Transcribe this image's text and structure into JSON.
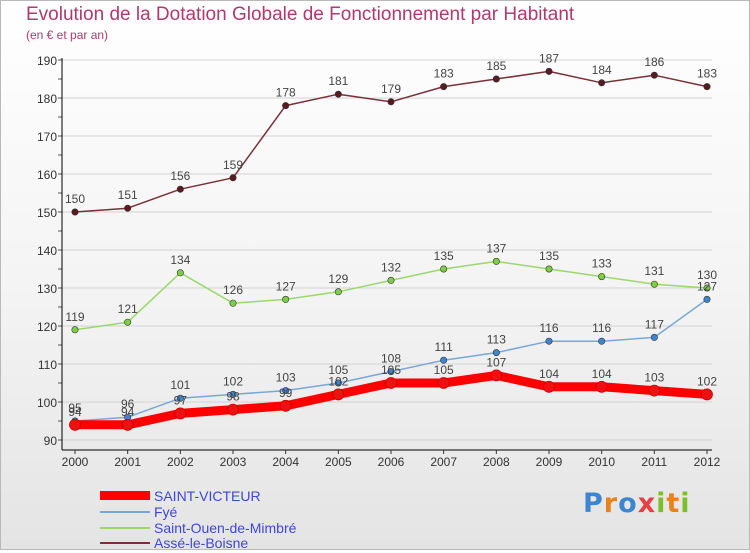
{
  "header": {
    "title": "Evolution de la Dotation Globale de Fonctionnement par Habitant",
    "subtitle": "(en € et par an)"
  },
  "logo": {
    "text": "Proxiti"
  },
  "colors": {
    "title": "#b0396f",
    "grid": "#d2d2d2",
    "axis": "#000000",
    "legend_text": "#3f47d6"
  },
  "chart_data": {
    "type": "line",
    "title": "Evolution de la Dotation Globale de Fonctionnement par Habitant",
    "subtitle": "(en € et par an)",
    "xlabel": "",
    "ylabel": "",
    "ylim": [
      90,
      190
    ],
    "yticks": [
      90,
      100,
      110,
      120,
      130,
      140,
      150,
      160,
      170,
      180,
      190
    ],
    "grid": true,
    "legend_position": "bottom-left",
    "x": [
      2000,
      2001,
      2002,
      2003,
      2004,
      2005,
      2006,
      2007,
      2008,
      2009,
      2010,
      2011,
      2012
    ],
    "series": [
      {
        "name": "Assé-le-Boisne",
        "color": "#7a2f3a",
        "marker_color": "#5a1a22",
        "values": [
          150,
          151,
          156,
          159,
          178,
          181,
          179,
          183,
          185,
          187,
          184,
          186,
          183
        ]
      },
      {
        "name": "Saint-Ouen-de-Mimbré",
        "color": "#9ad86c",
        "marker_color": "#7bcf44",
        "values": [
          119,
          121,
          134,
          126,
          127,
          129,
          132,
          135,
          137,
          135,
          133,
          131,
          130
        ]
      },
      {
        "name": "Fyé",
        "color": "#7aa7d6",
        "marker_color": "#3d86cf",
        "values": [
          95,
          96,
          101,
          102,
          103,
          105,
          108,
          111,
          113,
          116,
          116,
          117,
          127
        ]
      },
      {
        "name": "SAINT-VICTEUR",
        "color": "#ff0000",
        "marker_color": "#ee1111",
        "values": [
          94,
          94,
          97,
          98,
          99,
          102,
          105,
          105,
          107,
          104,
          104,
          103,
          102
        ]
      }
    ],
    "legend": [
      "SAINT-VICTEUR",
      "Fyé",
      "Saint-Ouen-de-Mimbré",
      "Assé-le-Boisne"
    ]
  }
}
